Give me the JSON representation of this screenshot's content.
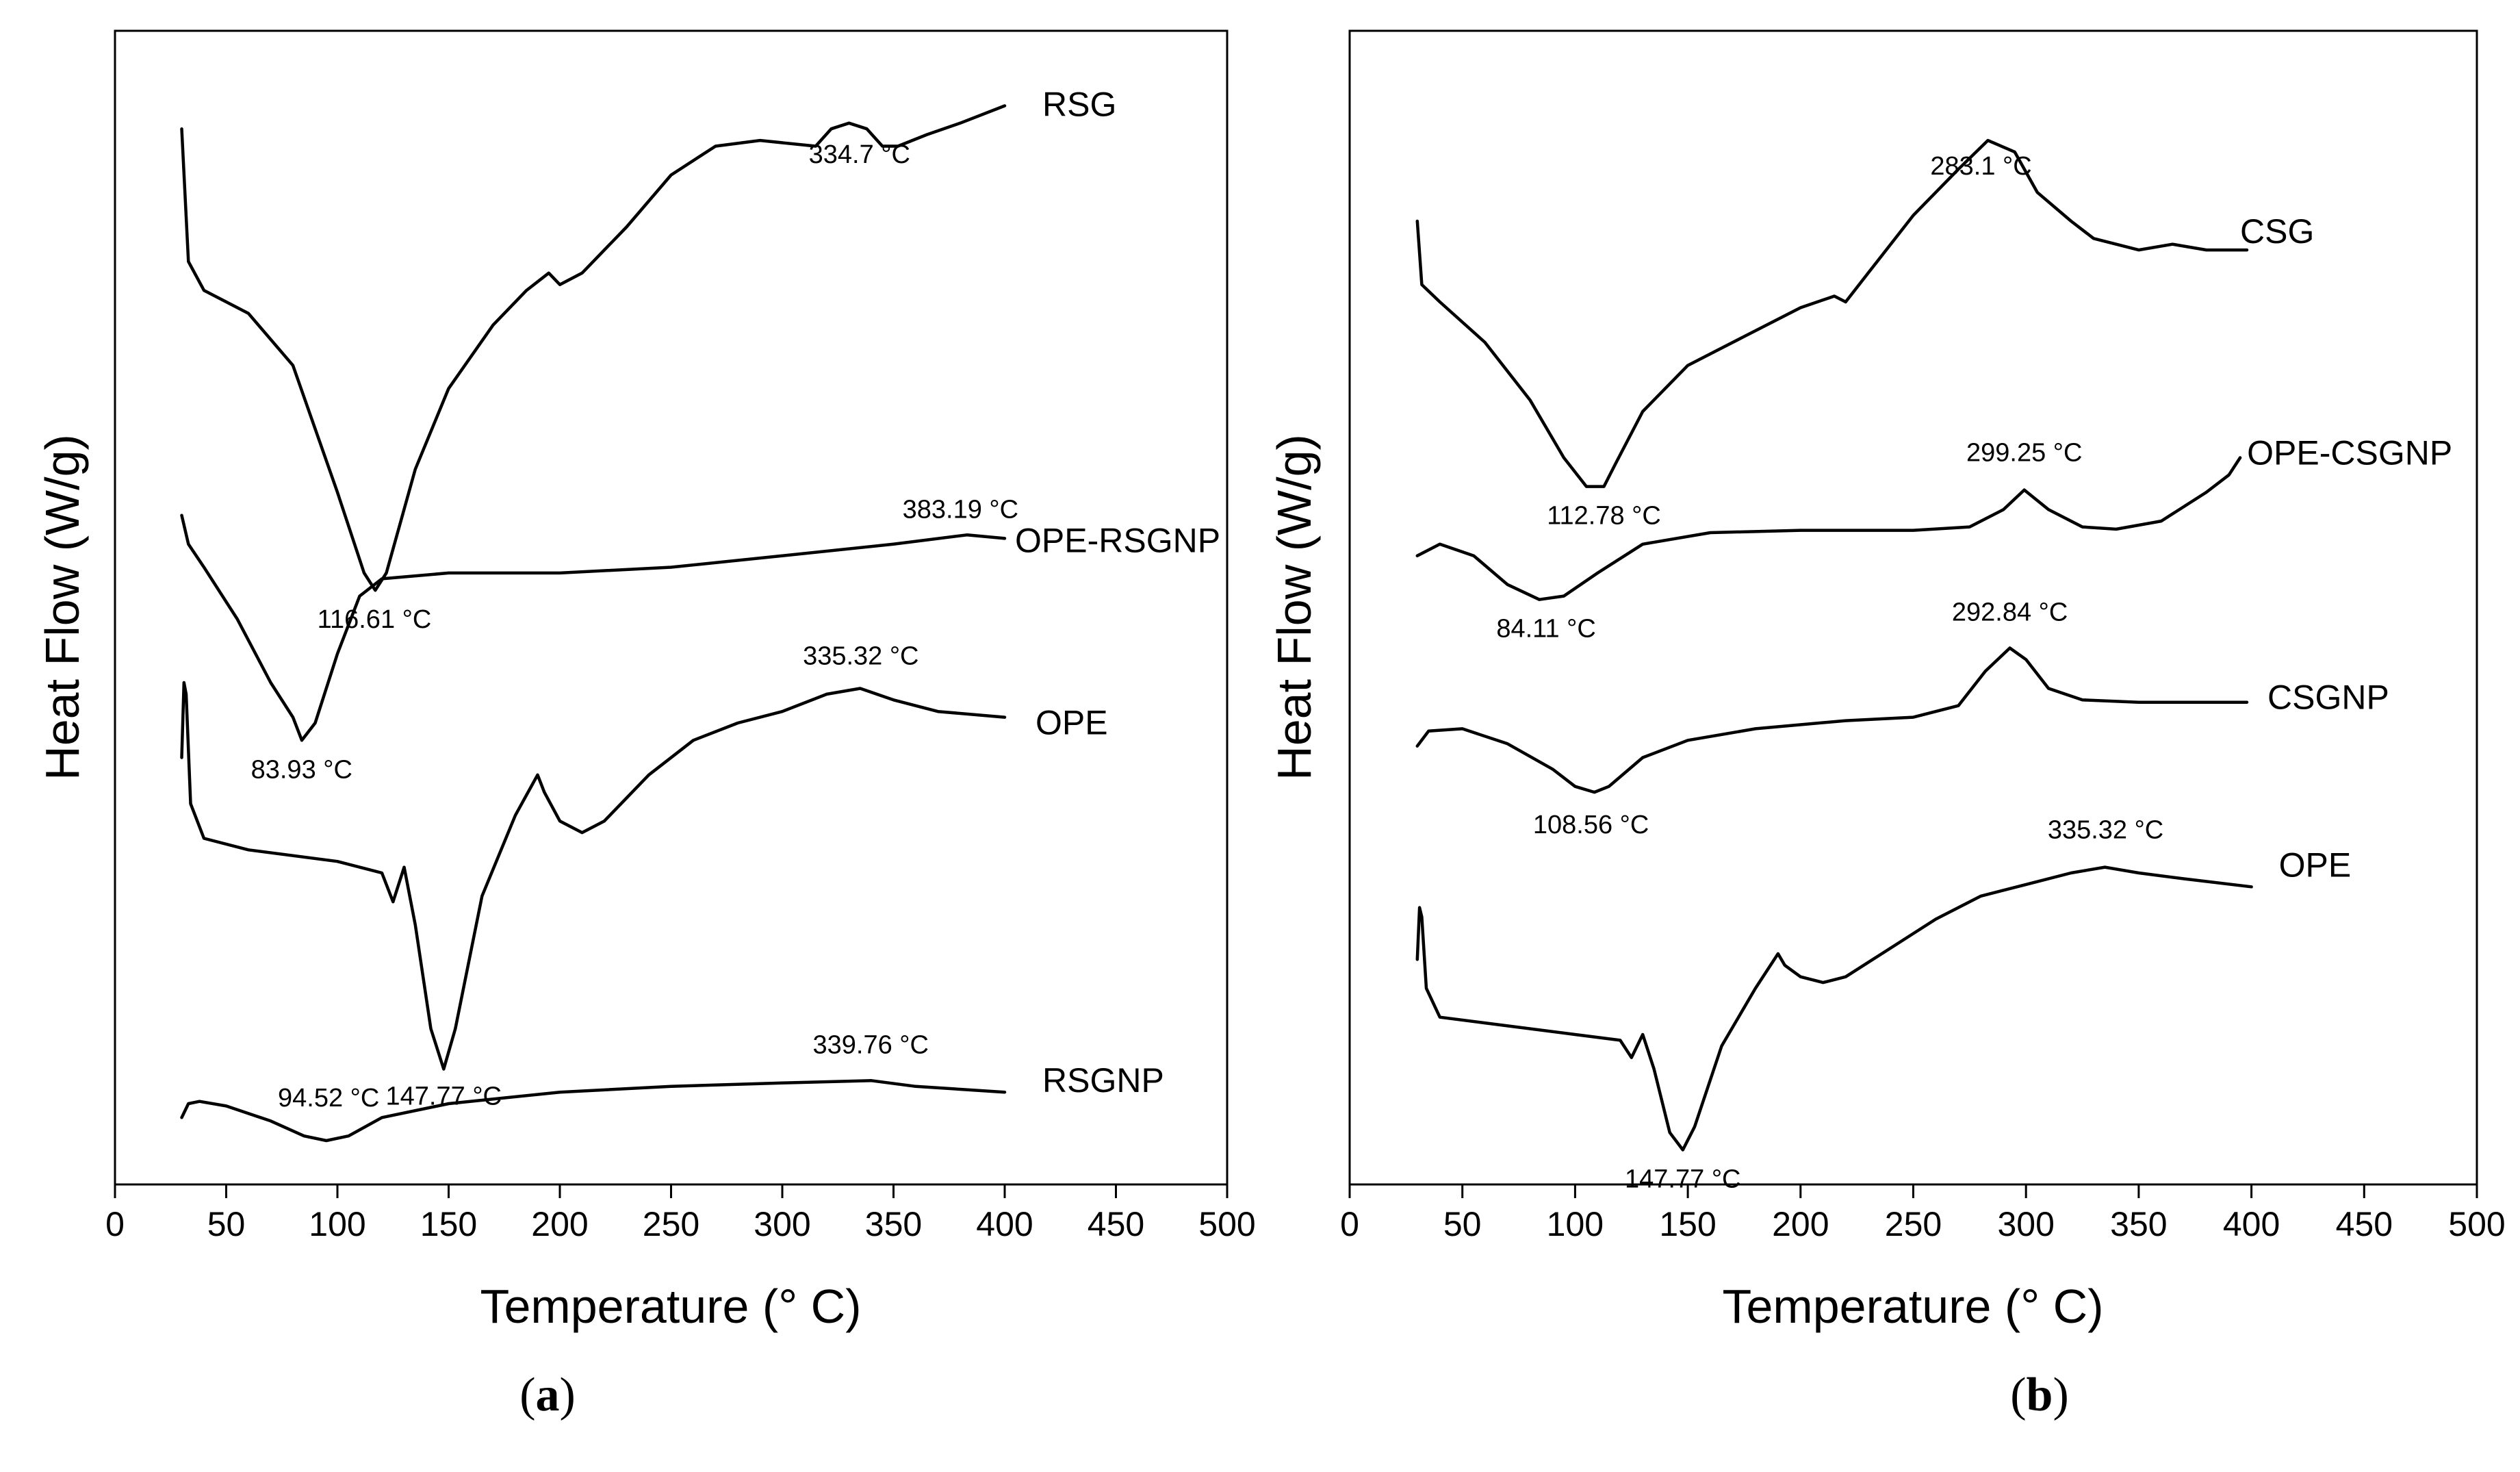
{
  "chart_data": [
    {
      "id": "a",
      "type": "line",
      "caption_letter": "a",
      "xlabel": "Temperature (° C)",
      "ylabel": "Heat Flow (W/g)",
      "xlim": [
        0,
        500
      ],
      "xticks": [
        0,
        50,
        100,
        150,
        200,
        250,
        300,
        350,
        400,
        450,
        500
      ],
      "grid": false,
      "series": [
        {
          "name": "RSG",
          "points": [
            [
              30,
              0.915
            ],
            [
              33,
              0.8
            ],
            [
              40,
              0.775
            ],
            [
              60,
              0.755
            ],
            [
              80,
              0.71
            ],
            [
              100,
              0.6
            ],
            [
              112,
              0.53
            ],
            [
              117,
              0.515
            ],
            [
              122,
              0.53
            ],
            [
              135,
              0.62
            ],
            [
              150,
              0.69
            ],
            [
              170,
              0.745
            ],
            [
              185,
              0.775
            ],
            [
              195,
              0.79
            ],
            [
              200,
              0.78
            ],
            [
              210,
              0.79
            ],
            [
              230,
              0.83
            ],
            [
              250,
              0.875
            ],
            [
              270,
              0.9
            ],
            [
              290,
              0.905
            ],
            [
              315,
              0.9
            ],
            [
              322,
              0.915
            ],
            [
              330,
              0.92
            ],
            [
              338,
              0.915
            ],
            [
              345,
              0.9
            ],
            [
              352,
              0.9
            ],
            [
              365,
              0.91
            ],
            [
              380,
              0.92
            ],
            [
              400,
              0.935
            ]
          ],
          "annotations": [
            {
              "text": "116.61 °C",
              "x": 116.61
            },
            {
              "text": "334.7 °C",
              "x": 334.7
            }
          ]
        },
        {
          "name": "OPE-RSGNP",
          "points": [
            [
              30,
              0.58
            ],
            [
              33,
              0.555
            ],
            [
              40,
              0.535
            ],
            [
              55,
              0.49
            ],
            [
              70,
              0.435
            ],
            [
              80,
              0.405
            ],
            [
              84,
              0.385
            ],
            [
              90,
              0.4
            ],
            [
              100,
              0.46
            ],
            [
              110,
              0.51
            ],
            [
              120,
              0.525
            ],
            [
              150,
              0.53
            ],
            [
              200,
              0.53
            ],
            [
              250,
              0.535
            ],
            [
              300,
              0.545
            ],
            [
              350,
              0.555
            ],
            [
              383,
              0.563
            ],
            [
              400,
              0.56
            ]
          ],
          "annotations": [
            {
              "text": "83.93 °C",
              "x": 83.93
            },
            {
              "text": "383.19 °C",
              "x": 383.19
            }
          ]
        },
        {
          "name": "OPE",
          "points": [
            [
              30,
              0.37
            ],
            [
              31,
              0.435
            ],
            [
              32,
              0.425
            ],
            [
              34,
              0.33
            ],
            [
              40,
              0.3
            ],
            [
              60,
              0.29
            ],
            [
              100,
              0.28
            ],
            [
              120,
              0.27
            ],
            [
              125,
              0.245
            ],
            [
              130,
              0.275
            ],
            [
              135,
              0.225
            ],
            [
              142,
              0.135
            ],
            [
              147.77,
              0.1
            ],
            [
              153,
              0.135
            ],
            [
              165,
              0.25
            ],
            [
              180,
              0.32
            ],
            [
              190,
              0.355
            ],
            [
              193,
              0.34
            ],
            [
              200,
              0.315
            ],
            [
              210,
              0.305
            ],
            [
              220,
              0.315
            ],
            [
              240,
              0.355
            ],
            [
              260,
              0.385
            ],
            [
              280,
              0.4
            ],
            [
              300,
              0.41
            ],
            [
              320,
              0.425
            ],
            [
              335,
              0.43
            ],
            [
              350,
              0.42
            ],
            [
              370,
              0.41
            ],
            [
              400,
              0.405
            ]
          ],
          "annotations": [
            {
              "text": "147.77 °C",
              "x": 147.77
            },
            {
              "text": "335.32 °C",
              "x": 335.32
            }
          ]
        },
        {
          "name": "RSGNP",
          "points": [
            [
              30,
              0.058
            ],
            [
              33,
              0.07
            ],
            [
              38,
              0.072
            ],
            [
              50,
              0.068
            ],
            [
              70,
              0.055
            ],
            [
              85,
              0.042
            ],
            [
              95,
              0.038
            ],
            [
              105,
              0.042
            ],
            [
              120,
              0.058
            ],
            [
              150,
              0.07
            ],
            [
              200,
              0.08
            ],
            [
              250,
              0.085
            ],
            [
              300,
              0.088
            ],
            [
              340,
              0.09
            ],
            [
              360,
              0.085
            ],
            [
              400,
              0.08
            ]
          ],
          "annotations": [
            {
              "text": "94.52 °C",
              "x": 94.52
            },
            {
              "text": "339.76 °C",
              "x": 339.76
            }
          ]
        }
      ]
    },
    {
      "id": "b",
      "type": "line",
      "caption_letter": "b",
      "xlabel": "Temperature (° C)",
      "ylabel": "Heat Flow (W/g)",
      "xlim": [
        0,
        500
      ],
      "xticks": [
        0,
        50,
        100,
        150,
        200,
        250,
        300,
        350,
        400,
        450,
        500
      ],
      "grid": false,
      "series": [
        {
          "name": "CSG",
          "points": [
            [
              30,
              0.835
            ],
            [
              32,
              0.78
            ],
            [
              40,
              0.765
            ],
            [
              60,
              0.73
            ],
            [
              80,
              0.68
            ],
            [
              95,
              0.63
            ],
            [
              105,
              0.605
            ],
            [
              112.78,
              0.605
            ],
            [
              118,
              0.625
            ],
            [
              130,
              0.67
            ],
            [
              150,
              0.71
            ],
            [
              175,
              0.735
            ],
            [
              200,
              0.76
            ],
            [
              215,
              0.77
            ],
            [
              220,
              0.765
            ],
            [
              230,
              0.79
            ],
            [
              250,
              0.84
            ],
            [
              270,
              0.88
            ],
            [
              283.1,
              0.905
            ],
            [
              295,
              0.895
            ],
            [
              305,
              0.86
            ],
            [
              320,
              0.835
            ],
            [
              330,
              0.82
            ],
            [
              350,
              0.81
            ],
            [
              365,
              0.815
            ],
            [
              380,
              0.81
            ],
            [
              398,
              0.81
            ]
          ],
          "annotations": [
            {
              "text": "112.78 °C",
              "x": 112.78
            },
            {
              "text": "283.1 °C",
              "x": 283.1
            }
          ]
        },
        {
          "name": "OPE-CSGNP",
          "points": [
            [
              30,
              0.545
            ],
            [
              40,
              0.555
            ],
            [
              55,
              0.545
            ],
            [
              70,
              0.52
            ],
            [
              84.11,
              0.507
            ],
            [
              95,
              0.51
            ],
            [
              110,
              0.53
            ],
            [
              130,
              0.555
            ],
            [
              160,
              0.565
            ],
            [
              200,
              0.567
            ],
            [
              250,
              0.567
            ],
            [
              275,
              0.57
            ],
            [
              290,
              0.585
            ],
            [
              299.25,
              0.602
            ],
            [
              310,
              0.585
            ],
            [
              325,
              0.57
            ],
            [
              340,
              0.568
            ],
            [
              360,
              0.575
            ],
            [
              380,
              0.6
            ],
            [
              390,
              0.615
            ],
            [
              395,
              0.63
            ]
          ],
          "annotations": [
            {
              "text": "84.11 °C",
              "x": 84.11
            },
            {
              "text": "299.25 °C",
              "x": 299.25
            }
          ]
        },
        {
          "name": "CSGNP",
          "points": [
            [
              30,
              0.38
            ],
            [
              35,
              0.393
            ],
            [
              50,
              0.395
            ],
            [
              70,
              0.382
            ],
            [
              90,
              0.36
            ],
            [
              100,
              0.345
            ],
            [
              108.56,
              0.34
            ],
            [
              115,
              0.345
            ],
            [
              130,
              0.37
            ],
            [
              150,
              0.385
            ],
            [
              180,
              0.395
            ],
            [
              220,
              0.402
            ],
            [
              250,
              0.405
            ],
            [
              270,
              0.415
            ],
            [
              282,
              0.445
            ],
            [
              292.84,
              0.465
            ],
            [
              300,
              0.455
            ],
            [
              310,
              0.43
            ],
            [
              325,
              0.42
            ],
            [
              350,
              0.418
            ],
            [
              380,
              0.418
            ],
            [
              398,
              0.418
            ]
          ],
          "annotations": [
            {
              "text": "108.56 °C",
              "x": 108.56
            },
            {
              "text": "292.84 °C",
              "x": 292.84
            }
          ]
        },
        {
          "name": "OPE",
          "points": [
            [
              30,
              0.195
            ],
            [
              31,
              0.24
            ],
            [
              32,
              0.232
            ],
            [
              34,
              0.17
            ],
            [
              40,
              0.145
            ],
            [
              60,
              0.14
            ],
            [
              100,
              0.13
            ],
            [
              120,
              0.125
            ],
            [
              125,
              0.11
            ],
            [
              130,
              0.13
            ],
            [
              135,
              0.1
            ],
            [
              142,
              0.045
            ],
            [
              147.77,
              0.03
            ],
            [
              153,
              0.05
            ],
            [
              165,
              0.12
            ],
            [
              180,
              0.17
            ],
            [
              190,
              0.2
            ],
            [
              193,
              0.19
            ],
            [
              200,
              0.18
            ],
            [
              210,
              0.175
            ],
            [
              220,
              0.18
            ],
            [
              240,
              0.205
            ],
            [
              260,
              0.23
            ],
            [
              280,
              0.25
            ],
            [
              300,
              0.26
            ],
            [
              320,
              0.27
            ],
            [
              335,
              0.275
            ],
            [
              350,
              0.27
            ],
            [
              370,
              0.265
            ],
            [
              400,
              0.258
            ]
          ],
          "annotations": [
            {
              "text": "147.77 °C",
              "x": 147.77
            },
            {
              "text": "335.32 °C",
              "x": 335.32
            }
          ]
        }
      ]
    }
  ]
}
